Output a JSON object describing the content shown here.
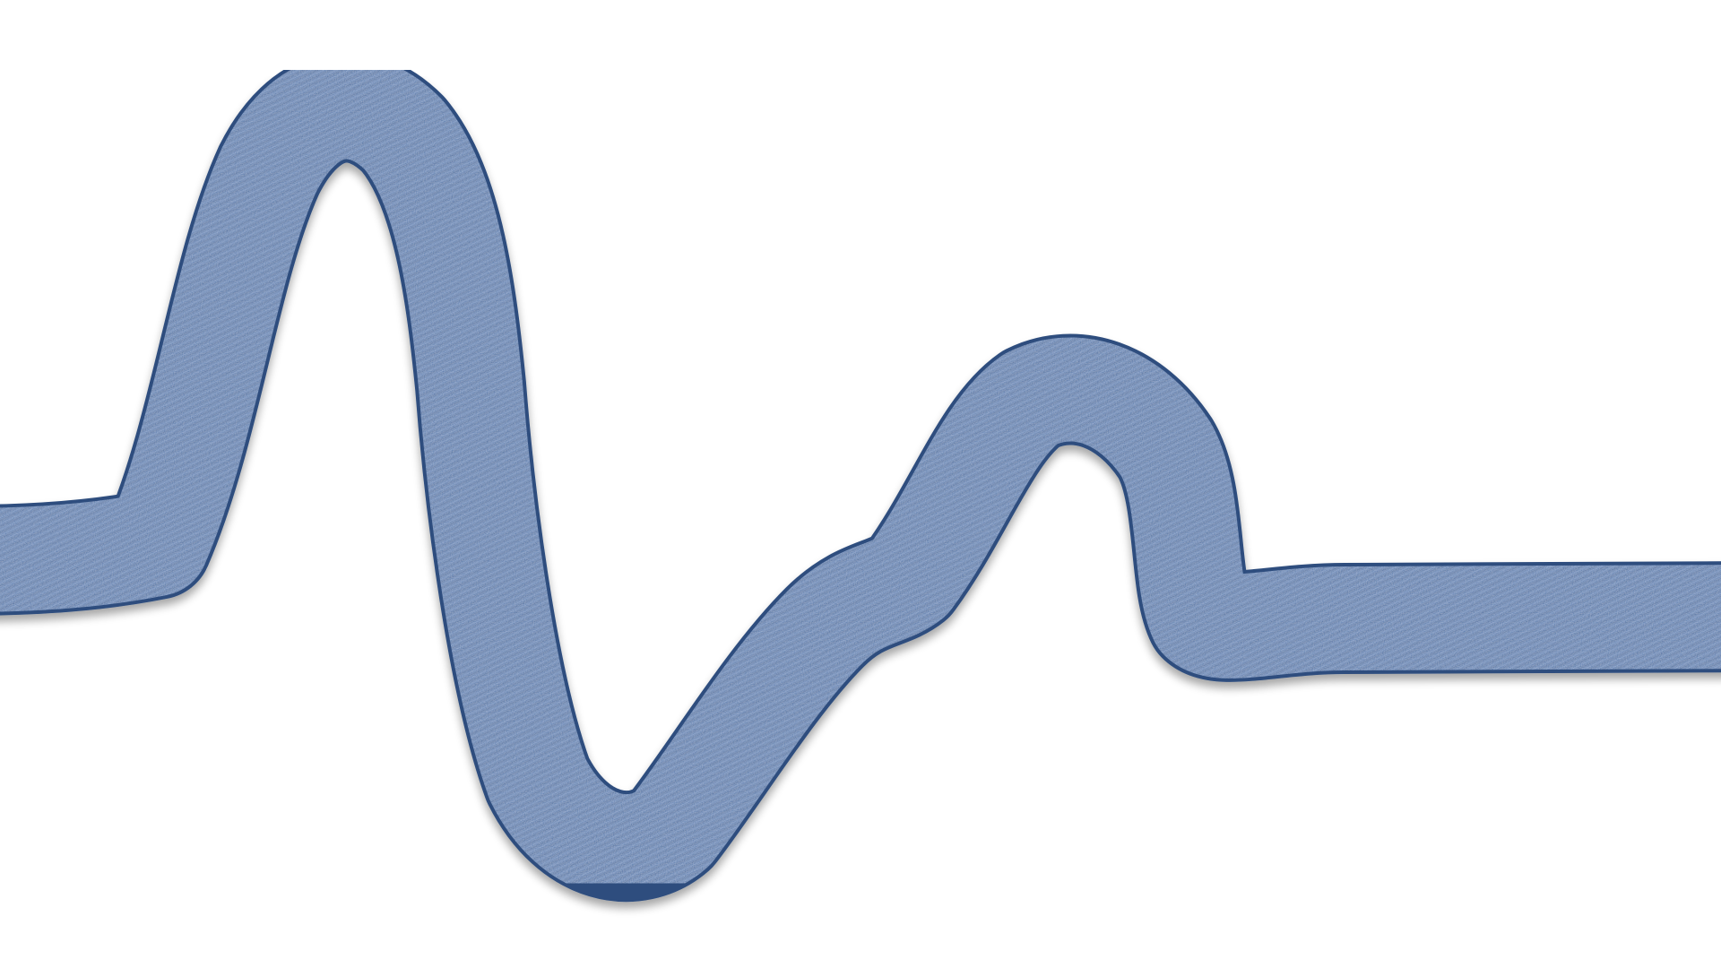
{
  "background_color": "#ffffff",
  "ribbon": {
    "color": "#4d74a8",
    "edge_color": "#2f4e7e",
    "texture": "denim"
  }
}
